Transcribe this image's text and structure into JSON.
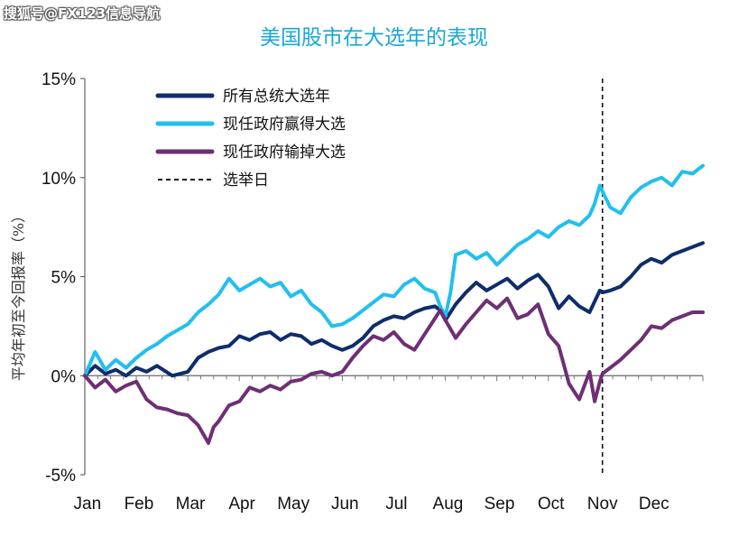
{
  "watermark": "搜狐号@FX123信息导航",
  "chart_data": {
    "type": "line",
    "title": "美国股市在大选年的表现",
    "ylabel": "平均年初至今回报率（%）",
    "xlabel": "",
    "ylim": [
      -5,
      15
    ],
    "yticks": [
      "15%",
      "10%",
      "5%",
      "0%",
      "-5%"
    ],
    "ytick_values": [
      15,
      10,
      5,
      0,
      -5
    ],
    "categories": [
      "Jan",
      "Feb",
      "Mar",
      "Apr",
      "May",
      "Jun",
      "Jul",
      "Aug",
      "Sep",
      "Oct",
      "Nov",
      "Dec"
    ],
    "xlim": [
      0,
      12
    ],
    "election_day": 10.05,
    "legend_position": "top-left",
    "grid": false,
    "series": [
      {
        "name": "所有总统大选年",
        "color": "#0f2d6b",
        "x": [
          0,
          0.2,
          0.4,
          0.6,
          0.8,
          1.0,
          1.2,
          1.4,
          1.7,
          2.0,
          2.2,
          2.4,
          2.6,
          2.8,
          3.0,
          3.2,
          3.4,
          3.6,
          3.8,
          4.0,
          4.2,
          4.4,
          4.6,
          4.8,
          5.0,
          5.2,
          5.4,
          5.6,
          5.8,
          6.0,
          6.2,
          6.4,
          6.6,
          6.8,
          6.9,
          7.0,
          7.2,
          7.4,
          7.6,
          7.8,
          8.0,
          8.2,
          8.4,
          8.6,
          8.8,
          9.0,
          9.2,
          9.4,
          9.6,
          9.8,
          10.0,
          10.05,
          10.2,
          10.4,
          10.6,
          10.8,
          11.0,
          11.2,
          11.4,
          11.6,
          11.8,
          12.0
        ],
        "y": [
          0,
          0.5,
          0.1,
          0.3,
          0.0,
          0.4,
          0.2,
          0.5,
          0.0,
          0.2,
          0.9,
          1.2,
          1.4,
          1.5,
          2.0,
          1.8,
          2.1,
          2.2,
          1.8,
          2.1,
          2.0,
          1.6,
          1.8,
          1.5,
          1.3,
          1.5,
          1.9,
          2.5,
          2.8,
          3.0,
          2.9,
          3.2,
          3.4,
          3.5,
          3.3,
          2.8,
          3.6,
          4.2,
          4.7,
          4.3,
          4.6,
          4.9,
          4.4,
          4.8,
          5.1,
          4.5,
          3.4,
          4.0,
          3.5,
          3.2,
          4.3,
          4.2,
          4.3,
          4.5,
          5.0,
          5.6,
          5.9,
          5.7,
          6.1,
          6.3,
          6.5,
          6.7
        ]
      },
      {
        "name": "现任政府赢得大选",
        "color": "#22bfee",
        "x": [
          0,
          0.2,
          0.4,
          0.6,
          0.8,
          1.0,
          1.2,
          1.4,
          1.6,
          1.8,
          2.0,
          2.2,
          2.4,
          2.6,
          2.8,
          3.0,
          3.2,
          3.4,
          3.6,
          3.8,
          4.0,
          4.2,
          4.4,
          4.6,
          4.8,
          5.0,
          5.2,
          5.4,
          5.6,
          5.8,
          6.0,
          6.2,
          6.4,
          6.6,
          6.8,
          6.9,
          7.0,
          7.1,
          7.2,
          7.4,
          7.6,
          7.8,
          8.0,
          8.2,
          8.4,
          8.6,
          8.8,
          9.0,
          9.2,
          9.4,
          9.6,
          9.8,
          9.9,
          10.0,
          10.05,
          10.2,
          10.4,
          10.6,
          10.8,
          11.0,
          11.2,
          11.4,
          11.6,
          11.8,
          12.0
        ],
        "y": [
          0,
          1.2,
          0.3,
          0.8,
          0.4,
          0.9,
          1.3,
          1.6,
          2.0,
          2.3,
          2.6,
          3.2,
          3.6,
          4.1,
          4.9,
          4.3,
          4.6,
          4.9,
          4.5,
          4.7,
          4.0,
          4.3,
          3.6,
          3.2,
          2.5,
          2.6,
          2.9,
          3.3,
          3.7,
          4.1,
          4.0,
          4.6,
          4.9,
          4.4,
          4.2,
          3.5,
          3.0,
          4.2,
          6.1,
          6.3,
          5.9,
          6.2,
          5.6,
          6.1,
          6.6,
          6.9,
          7.3,
          7.0,
          7.5,
          7.8,
          7.6,
          8.1,
          8.7,
          9.6,
          9.3,
          8.5,
          8.2,
          9.0,
          9.5,
          9.8,
          10.0,
          9.6,
          10.3,
          10.2,
          10.6
        ]
      },
      {
        "name": "现任政府输掉大选",
        "color": "#6e2f74",
        "x": [
          0,
          0.2,
          0.4,
          0.6,
          0.8,
          1.0,
          1.2,
          1.4,
          1.6,
          1.8,
          2.0,
          2.2,
          2.4,
          2.5,
          2.6,
          2.8,
          3.0,
          3.2,
          3.4,
          3.6,
          3.8,
          4.0,
          4.2,
          4.4,
          4.6,
          4.8,
          5.0,
          5.2,
          5.4,
          5.6,
          5.8,
          6.0,
          6.2,
          6.4,
          6.6,
          6.8,
          6.9,
          7.0,
          7.2,
          7.4,
          7.6,
          7.8,
          8.0,
          8.2,
          8.4,
          8.6,
          8.8,
          9.0,
          9.2,
          9.4,
          9.6,
          9.8,
          9.9,
          10.0,
          10.05,
          10.2,
          10.4,
          10.6,
          10.8,
          11.0,
          11.2,
          11.4,
          11.6,
          11.8,
          12.0
        ],
        "y": [
          0,
          -0.6,
          -0.2,
          -0.8,
          -0.5,
          -0.3,
          -1.2,
          -1.6,
          -1.7,
          -1.9,
          -2.0,
          -2.5,
          -3.4,
          -2.6,
          -2.3,
          -1.5,
          -1.3,
          -0.6,
          -0.8,
          -0.5,
          -0.7,
          -0.3,
          -0.2,
          0.1,
          0.2,
          0.0,
          0.2,
          0.9,
          1.5,
          2.0,
          1.8,
          2.2,
          1.6,
          1.3,
          2.1,
          2.9,
          3.3,
          2.8,
          1.9,
          2.6,
          3.2,
          3.8,
          3.4,
          3.9,
          2.9,
          3.1,
          3.6,
          2.1,
          1.5,
          -0.4,
          -1.2,
          0.2,
          -1.3,
          -0.3,
          0.1,
          0.4,
          0.8,
          1.3,
          1.8,
          2.5,
          2.4,
          2.8,
          3.0,
          3.2,
          3.2
        ]
      }
    ],
    "legend_items": [
      {
        "label": "所有总统大选年",
        "style": "solid",
        "color": "#0f2d6b"
      },
      {
        "label": "现任政府赢得大选",
        "style": "solid",
        "color": "#22bfee"
      },
      {
        "label": "现任政府输掉大选",
        "style": "solid",
        "color": "#6e2f74"
      },
      {
        "label": "选举日",
        "style": "dashed",
        "color": "#111111"
      }
    ]
  }
}
